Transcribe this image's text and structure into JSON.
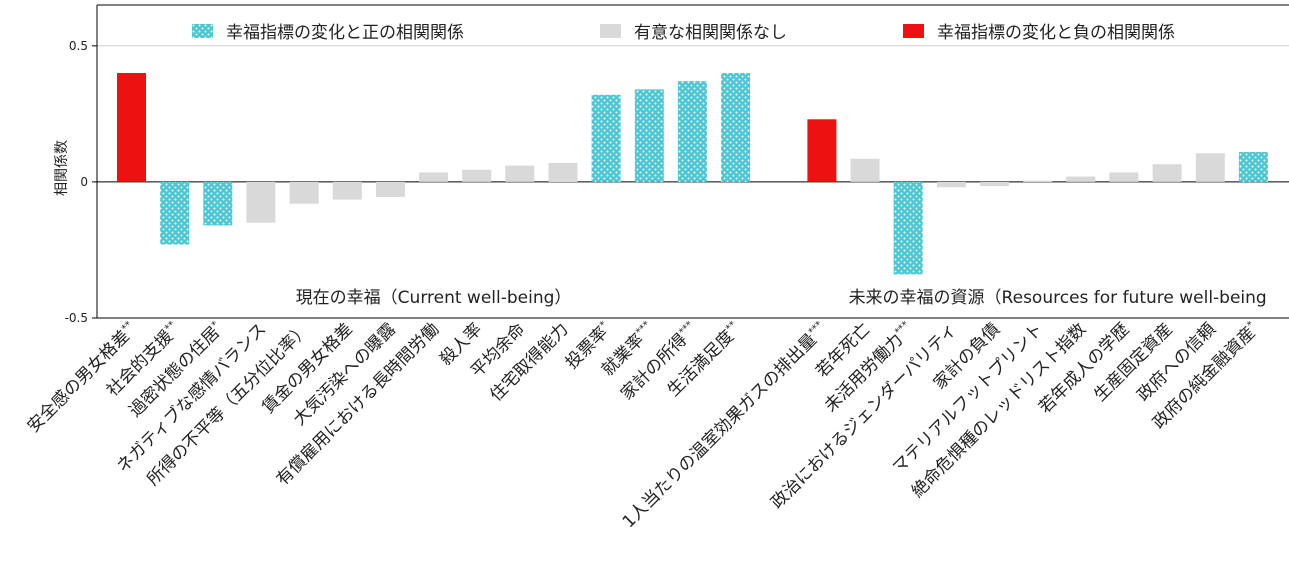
{
  "chart_data": {
    "type": "bar",
    "ylabel": "相関係数",
    "ylim": [
      -0.5,
      0.65
    ],
    "yticks": [
      -0.5,
      0,
      0.5
    ],
    "grid": true,
    "legend_position": "top",
    "legend": [
      {
        "key": "pos",
        "label": "幸福指標の変化と正の相関関係"
      },
      {
        "key": "none",
        "label": "有意な相関関係なし"
      },
      {
        "key": "neg",
        "label": "幸福指標の変化と負の相関関係"
      }
    ],
    "colors": {
      "pos": "#4ac6d4",
      "none": "#d9d9d9",
      "neg": "#ee1111"
    },
    "groups": [
      {
        "label": "現在の幸福（Current well-being）",
        "indices": [
          0,
          14
        ]
      },
      {
        "label": "未来の幸福の資源（Resources for future well-being",
        "indices": [
          15,
          25
        ]
      }
    ],
    "categories": [
      "安全感の男女格差**",
      "社会的支援**",
      "過密状態の住居*",
      "ネガティブな感情バランス",
      "所得の不平等（五分位比率）",
      "賃金の男女格差",
      "大気汚染への曝露",
      "有償雇用における長時間労働",
      "殺人率",
      "平均余命",
      "住宅取得能力",
      "投票率*",
      "就業率***",
      "家計の所得***",
      "生活満足度**",
      "1人当たりの温室効果ガスの排出量***",
      "若年死亡",
      "未活用労働力***",
      "政治におけるジェンダーパリティ",
      "家計の負債",
      "マテリアルフットプリント",
      "絶命危惧種のレッドリスト指数",
      "若年成人の学歴",
      "生産固定資産",
      "政府への信頼",
      "政府の純金融資産*"
    ],
    "values": [
      0.4,
      -0.23,
      -0.16,
      -0.15,
      -0.08,
      -0.065,
      -0.055,
      0.035,
      0.045,
      0.06,
      0.07,
      0.32,
      0.34,
      0.37,
      0.4,
      0.23,
      0.085,
      -0.34,
      -0.02,
      -0.015,
      0.005,
      0.02,
      0.035,
      0.065,
      0.105,
      0.11
    ],
    "status": [
      "neg",
      "pos",
      "pos",
      "none",
      "none",
      "none",
      "none",
      "none",
      "none",
      "none",
      "none",
      "pos",
      "pos",
      "pos",
      "pos",
      "neg",
      "none",
      "pos",
      "none",
      "none",
      "none",
      "none",
      "none",
      "none",
      "none",
      "pos"
    ]
  }
}
